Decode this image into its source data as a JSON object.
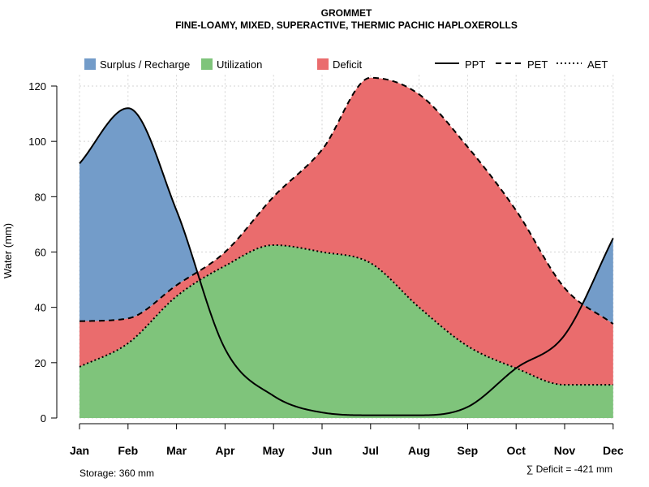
{
  "chart_data": {
    "type": "area",
    "title": "GROMMET",
    "subtitle": "FINE-LOAMY, MIXED, SUPERACTIVE, THERMIC PACHIC HAPLOXEROLLS",
    "xlabel": "",
    "ylabel": "Water (mm)",
    "ylim": [
      0,
      124
    ],
    "y_ticks": [
      0,
      20,
      40,
      60,
      80,
      100,
      120
    ],
    "categories": [
      "Jan",
      "Feb",
      "Mar",
      "Apr",
      "May",
      "Jun",
      "Jul",
      "Aug",
      "Sep",
      "Oct",
      "Nov",
      "Dec"
    ],
    "grid": true,
    "legend_position": "top",
    "series": [
      {
        "name": "PPT",
        "style": "solid",
        "values": [
          92,
          112,
          75,
          25,
          8,
          2,
          1,
          1,
          4,
          18,
          30,
          65
        ]
      },
      {
        "name": "PET",
        "style": "dashed",
        "values": [
          35,
          36,
          48,
          60,
          80,
          97,
          123,
          117,
          98,
          75,
          47,
          34
        ]
      },
      {
        "name": "AET",
        "style": "dotted",
        "values": [
          18.5,
          27,
          44,
          55,
          62.5,
          60,
          56,
          40,
          26,
          18,
          12,
          12
        ]
      }
    ],
    "areas": [
      {
        "name": "Surplus / Recharge",
        "color": "#739cc9"
      },
      {
        "name": "Utilization",
        "color": "#7fc47b"
      },
      {
        "name": "Deficit",
        "color": "#ea6c6d"
      }
    ],
    "annotations": {
      "storage": "Storage: 360 mm",
      "deficit": "∑ Deficit = -421 mm"
    }
  }
}
